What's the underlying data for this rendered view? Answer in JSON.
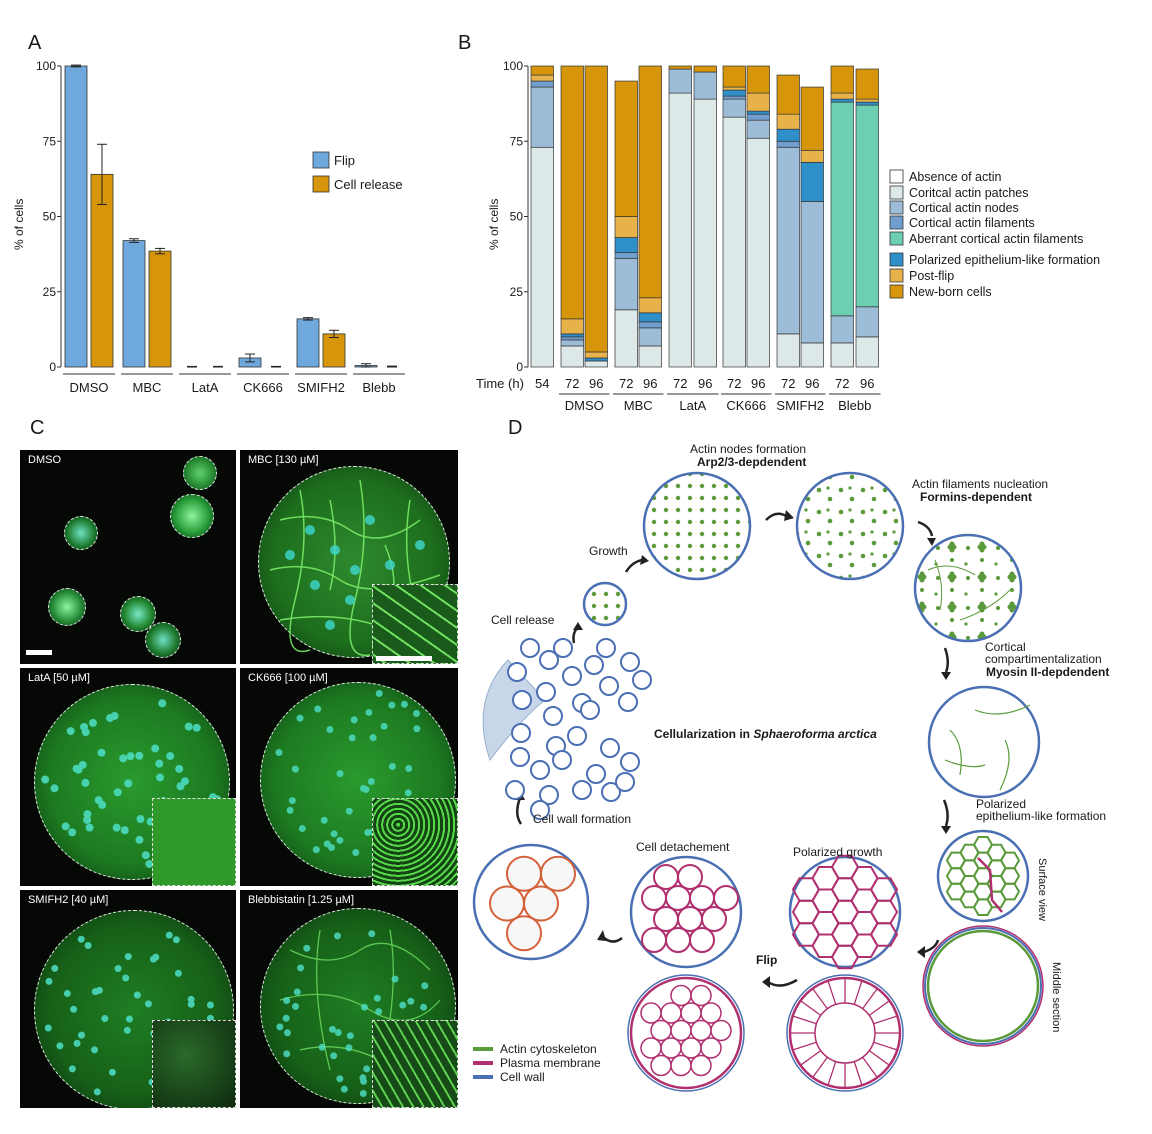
{
  "panels": {
    "a": "A",
    "b": "B",
    "c": "C",
    "d": "D"
  },
  "colors": {
    "flip": "#6fa8dc",
    "release": "#d6950b",
    "absence": "#ffffff",
    "patches": "#dde8e8",
    "nodes": "#9dbcd8",
    "filaments": "#6f9ecf",
    "aberrant": "#6ccfb3",
    "polarized": "#2f8fc9",
    "postflip": "#e8b24a",
    "newborn": "#d6950b",
    "actin": "#5a9a3a",
    "membrane": "#b0306f",
    "wall": "#4a6fb3"
  },
  "chart_data": [
    {
      "type": "bar",
      "ylabel": "% of cells",
      "ylim": [
        0,
        100
      ],
      "yticks": [
        0,
        25,
        50,
        75,
        100
      ],
      "categories": [
        "DMSO",
        "MBC",
        "LatA",
        "CK666",
        "SMIFH2",
        "Blebb"
      ],
      "series": [
        {
          "name": "Flip",
          "values": [
            100,
            42,
            0,
            3,
            16,
            0.5
          ],
          "errors": [
            0.3,
            0.6,
            0.2,
            1.3,
            0.4,
            0.6
          ]
        },
        {
          "name": "Cell release",
          "values": [
            64,
            38.5,
            0,
            0,
            11,
            0
          ],
          "errors": [
            10,
            0.9,
            0.2,
            0.2,
            1.2,
            0.3
          ]
        }
      ]
    },
    {
      "type": "bar",
      "stacked": true,
      "ylabel": "% of cells",
      "ylim": [
        0,
        100
      ],
      "yticks": [
        0,
        25,
        50,
        75,
        100
      ],
      "time_label": "Time (h)",
      "bars": [
        "54",
        "72",
        "96",
        "72",
        "96",
        "72",
        "96",
        "72",
        "96",
        "72",
        "96",
        "72",
        "96"
      ],
      "groups": [
        {
          "name": "",
          "bars": [
            0
          ]
        },
        {
          "name": "DMSO",
          "bars": [
            1,
            2
          ]
        },
        {
          "name": "MBC",
          "bars": [
            3,
            4
          ]
        },
        {
          "name": "LatA",
          "bars": [
            5,
            6
          ]
        },
        {
          "name": "CK666",
          "bars": [
            7,
            8
          ]
        },
        {
          "name": "SMIFH2",
          "bars": [
            9,
            10
          ]
        },
        {
          "name": "Blebb",
          "bars": [
            11,
            12
          ]
        }
      ],
      "series": [
        {
          "name": "Absence of actin",
          "values": [
            0,
            0,
            0,
            0,
            0,
            0,
            0,
            0,
            0,
            0,
            0,
            0,
            0
          ]
        },
        {
          "name": "Coritcal actin patches",
          "values": [
            73,
            7,
            2,
            19,
            7,
            91,
            89,
            83,
            76,
            11,
            8,
            8,
            10
          ]
        },
        {
          "name": "Cortical actin nodes",
          "values": [
            20,
            2,
            0,
            17,
            6,
            8,
            9,
            6,
            6,
            62,
            47,
            9,
            10
          ]
        },
        {
          "name": "Cortical actin filaments",
          "values": [
            2,
            1,
            0,
            2,
            2,
            0,
            0,
            1,
            2,
            2,
            0,
            0,
            0
          ]
        },
        {
          "name": "Aberrant cortical actin filaments",
          "values": [
            0,
            0,
            0,
            0,
            0,
            0,
            0,
            0,
            0,
            0,
            0,
            71,
            67
          ]
        },
        {
          "name": "Polarized epithelium-like formation",
          "values": [
            0,
            1,
            1,
            5,
            3,
            0,
            0,
            2,
            1,
            4,
            13,
            1,
            1
          ]
        },
        {
          "name": "Post-flip",
          "values": [
            2,
            5,
            2,
            7,
            5,
            0,
            0,
            1,
            6,
            5,
            4,
            2,
            1
          ]
        },
        {
          "name": "New-born cells",
          "values": [
            3,
            84,
            95,
            45,
            77,
            1,
            2,
            7,
            9,
            13,
            21,
            9,
            10
          ]
        }
      ]
    }
  ],
  "micro": [
    {
      "label": "DMSO"
    },
    {
      "label": "MBC [130 µM]"
    },
    {
      "label": "LatA [50 µM]"
    },
    {
      "label": "CK666 [100 µM]"
    },
    {
      "label": "SMIFH2 [40 µM]"
    },
    {
      "label": "Blebbistatin [1.25 µM]"
    }
  ],
  "diagram": {
    "title_prefix": "Cellularization in ",
    "title_species": "Sphaeroforma arctica",
    "nodes_title": "Actin nodes formation",
    "nodes_sub": "Arp2/3-depdendent",
    "filaments_title": "Actin filaments nucleation",
    "filaments_sub": "Formins-dependent",
    "cortical_1": "Cortical",
    "cortical_2": "compartimentalization",
    "cortical_sub": "Myosin II-depdendent",
    "polarized_1": "Polarized",
    "polarized_2": "epithelium-like formation",
    "surface": "Surface view",
    "middle": "Middle section",
    "polarized_growth": "Polarized growth",
    "flip": "Flip",
    "detach": "Cell detachement",
    "wall_formation": "Cell wall formation",
    "release": "Cell release",
    "growth": "Growth",
    "legend": [
      "Actin cytoskeleton",
      "Plasma membrane",
      "Cell wall"
    ]
  }
}
